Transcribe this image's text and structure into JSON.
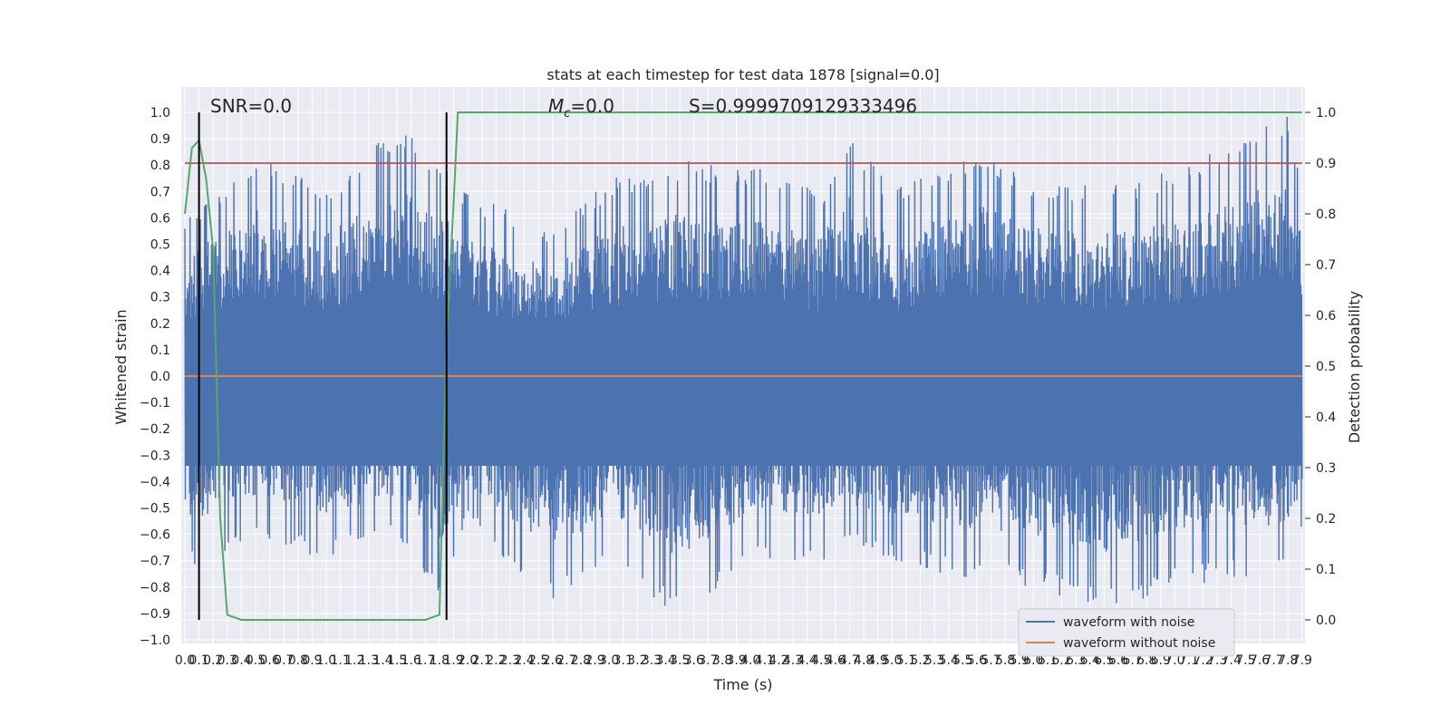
{
  "chart_data": {
    "type": "line",
    "title": "stats at each timestep for test data 1878 [signal=0.0]",
    "xlabel": "Time (s)",
    "ylabel": "Whitened strain",
    "y2label": "Detection probability",
    "xlim": [
      0.0,
      7.9
    ],
    "ylim": [
      -1.0,
      1.0
    ],
    "y2lim": [
      0.0,
      1.0
    ],
    "grid": true,
    "legend_position": "lower-right",
    "x_ticks": [
      "0.0",
      "0.1",
      "0.2",
      "0.3",
      "0.4",
      "0.5",
      "0.6",
      "0.7",
      "0.8",
      "0.9",
      "1.0",
      "1.1",
      "1.2",
      "1.3",
      "1.4",
      "1.5",
      "1.6",
      "1.7",
      "1.8",
      "1.9",
      "2.0",
      "2.1",
      "2.2",
      "2.3",
      "2.4",
      "2.5",
      "2.6",
      "2.7",
      "2.8",
      "2.9",
      "3.0",
      "3.1",
      "3.2",
      "3.3",
      "3.4",
      "3.5",
      "3.6",
      "3.7",
      "3.8",
      "3.9",
      "4.0",
      "4.1",
      "4.2",
      "4.3",
      "4.4",
      "4.5",
      "4.6",
      "4.7",
      "4.8",
      "4.9",
      "5.0",
      "5.1",
      "5.2",
      "5.3",
      "5.4",
      "5.5",
      "5.6",
      "5.7",
      "5.8",
      "5.9",
      "6.0",
      "6.1",
      "6.2",
      "6.3",
      "6.4",
      "6.5",
      "6.6",
      "6.7",
      "6.8",
      "6.9",
      "7.0",
      "7.1",
      "7.2",
      "7.3",
      "7.4",
      "7.5",
      "7.6",
      "7.7",
      "7.8",
      "7.9"
    ],
    "y_ticks": [
      "1.0",
      "0.9",
      "0.8",
      "0.7",
      "0.6",
      "0.5",
      "0.4",
      "0.3",
      "0.2",
      "0.1",
      "0.0",
      "−0.1",
      "−0.2",
      "−0.3",
      "−0.4",
      "−0.5",
      "−0.6",
      "−0.7",
      "−0.8",
      "−0.9",
      "−1.0"
    ],
    "y2_ticks": [
      "1.0",
      "0.9",
      "0.8",
      "0.7",
      "0.6",
      "0.5",
      "0.4",
      "0.3",
      "0.2",
      "0.1",
      "0.0"
    ],
    "annotations": {
      "snr": "SNR=0.0",
      "mc_symbol": "M",
      "mc_sub": "c",
      "mc_value": "=0.0",
      "s": "S=0.9999709129333496"
    },
    "series": [
      {
        "name": "waveform with noise",
        "color": "#4c72b0",
        "noise_envelope": [
          [
            0.0,
            0.6,
            -0.75
          ],
          [
            0.5,
            0.85,
            -0.6
          ],
          [
            1.0,
            0.72,
            -0.7
          ],
          [
            1.5,
            0.95,
            -0.6
          ],
          [
            1.8,
            0.82,
            -0.85
          ],
          [
            2.0,
            0.7,
            -0.55
          ],
          [
            2.6,
            0.55,
            -0.88
          ],
          [
            3.0,
            0.75,
            -0.7
          ],
          [
            3.5,
            0.82,
            -0.92
          ],
          [
            4.0,
            0.8,
            -0.72
          ],
          [
            4.5,
            0.7,
            -0.7
          ],
          [
            4.7,
            0.94,
            -0.66
          ],
          [
            5.0,
            0.7,
            -0.7
          ],
          [
            5.6,
            0.87,
            -0.78
          ],
          [
            6.0,
            0.75,
            -0.8
          ],
          [
            6.5,
            0.72,
            -0.9
          ],
          [
            7.0,
            0.78,
            -0.8
          ],
          [
            7.8,
            1.0,
            -0.75
          ],
          [
            7.9,
            0.74,
            -0.56
          ]
        ]
      },
      {
        "name": "waveform without noise",
        "color": "#dd8452",
        "values": [
          [
            0.0,
            0.0
          ],
          [
            7.9,
            0.0
          ]
        ]
      },
      {
        "name": "",
        "color": "#55a868",
        "axis": "right",
        "values": [
          [
            0.0,
            0.8
          ],
          [
            0.05,
            0.93
          ],
          [
            0.1,
            0.945
          ],
          [
            0.15,
            0.87
          ],
          [
            0.2,
            0.73
          ],
          [
            0.25,
            0.2
          ],
          [
            0.3,
            0.01
          ],
          [
            0.4,
            0.0
          ],
          [
            1.7,
            0.0
          ],
          [
            1.8,
            0.01
          ],
          [
            1.85,
            0.55
          ],
          [
            1.9,
            0.82
          ],
          [
            1.93,
            1.0
          ],
          [
            7.9,
            1.0
          ]
        ]
      }
    ],
    "threshold": {
      "axis": "right",
      "value": 0.9,
      "color": "#c44e52"
    },
    "vlines": [
      0.1,
      1.85
    ]
  }
}
